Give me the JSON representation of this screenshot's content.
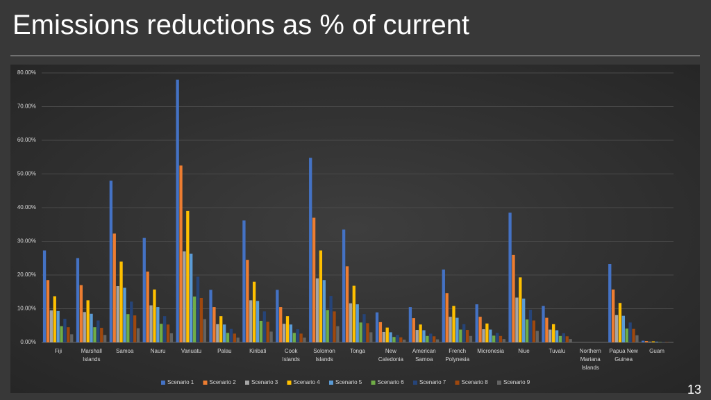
{
  "slide_number": "13",
  "chart_data": {
    "type": "bar",
    "title": "Emissions reductions as % of current",
    "categories": [
      "Fiji",
      "Marshall Islands",
      "Samoa",
      "Nauru",
      "Vanuatu",
      "Palau",
      "Kiribati",
      "Cook Islands",
      "Solomon Islands",
      "Tonga",
      "New Caledonia",
      "American Samoa",
      "French Polynesia",
      "Micronesia",
      "Niue",
      "Tuvalu",
      "Northern Mariana Islands",
      "Papua New Guinea",
      "Guam"
    ],
    "series": [
      {
        "name": "Scenario 1",
        "color": "#4472c4",
        "values": [
          27.3,
          25,
          48,
          31,
          78,
          15.6,
          36.2,
          15.6,
          54.8,
          33.5,
          8.9,
          10.5,
          21.6,
          11.3,
          38.5,
          10.8,
          0,
          23.3,
          0.5
        ]
      },
      {
        "name": "Scenario 2",
        "color": "#ed7d31",
        "values": [
          18.5,
          17,
          32.3,
          21,
          52.5,
          10.5,
          24.5,
          10.5,
          37,
          22.6,
          6,
          7.2,
          14.6,
          7.6,
          26,
          7.3,
          0,
          15.7,
          0.4
        ]
      },
      {
        "name": "Scenario 3",
        "color": "#a5a5a5",
        "values": [
          9.5,
          9,
          16.7,
          11,
          27,
          5.4,
          12.5,
          5.5,
          19,
          11.6,
          3.1,
          3.7,
          7.6,
          3.9,
          13.3,
          3.8,
          0,
          8.1,
          0.2
        ]
      },
      {
        "name": "Scenario 4",
        "color": "#ffc000",
        "values": [
          13.7,
          12.5,
          24,
          15.7,
          39,
          7.8,
          18,
          7.8,
          27.3,
          16.8,
          4.4,
          5.3,
          10.8,
          5.6,
          19.3,
          5.4,
          0,
          11.7,
          0.3
        ]
      },
      {
        "name": "Scenario 5",
        "color": "#5b9bd5",
        "values": [
          9.3,
          8.5,
          16.2,
          10.5,
          26.3,
          5.3,
          12.3,
          5.3,
          18.5,
          11.3,
          3,
          3.6,
          7.3,
          3.8,
          13,
          3.6,
          0,
          7.9,
          0.2
        ]
      },
      {
        "name": "Scenario 6",
        "color": "#70ad47",
        "values": [
          4.8,
          4.5,
          8.4,
          5.5,
          13.6,
          2.8,
          6.4,
          2.8,
          9.6,
          5.9,
          1.6,
          1.9,
          3.8,
          2,
          6.8,
          1.9,
          0,
          4.1,
          0.1
        ]
      },
      {
        "name": "Scenario 7",
        "color": "#264478",
        "values": [
          7,
          6.5,
          12.1,
          7.8,
          19.5,
          4,
          9.2,
          3.9,
          13.8,
          8.4,
          2.2,
          2.6,
          5.4,
          2.8,
          9.7,
          2.7,
          0,
          5.9,
          0.1
        ]
      },
      {
        "name": "Scenario 8",
        "color": "#9e480e",
        "values": [
          4.5,
          4.3,
          8,
          5.3,
          13.2,
          2.6,
          6.1,
          2.6,
          9.2,
          5.7,
          1.5,
          1.8,
          3.7,
          1.9,
          6.5,
          1.8,
          0,
          4,
          0.1
        ]
      },
      {
        "name": "Scenario 9",
        "color": "#636363",
        "values": [
          2.4,
          2.2,
          4.2,
          2.7,
          6.9,
          1.4,
          3.2,
          1.4,
          4.8,
          3,
          0.8,
          0.9,
          1.9,
          1,
          3.4,
          1,
          0,
          2.1,
          0.1
        ]
      }
    ],
    "ylim": [
      0,
      80
    ],
    "yticks": [
      {
        "value": 0,
        "label": "0.00%"
      },
      {
        "value": 10,
        "label": "10.00%"
      },
      {
        "value": 20,
        "label": "20.00%"
      },
      {
        "value": 30,
        "label": "30.00%"
      },
      {
        "value": 40,
        "label": "40.00%"
      },
      {
        "value": 50,
        "label": "50.00%"
      },
      {
        "value": 60,
        "label": "60.00%"
      },
      {
        "value": 70,
        "label": "70.00%"
      },
      {
        "value": 80,
        "label": "80.00%"
      }
    ],
    "grid": true
  }
}
